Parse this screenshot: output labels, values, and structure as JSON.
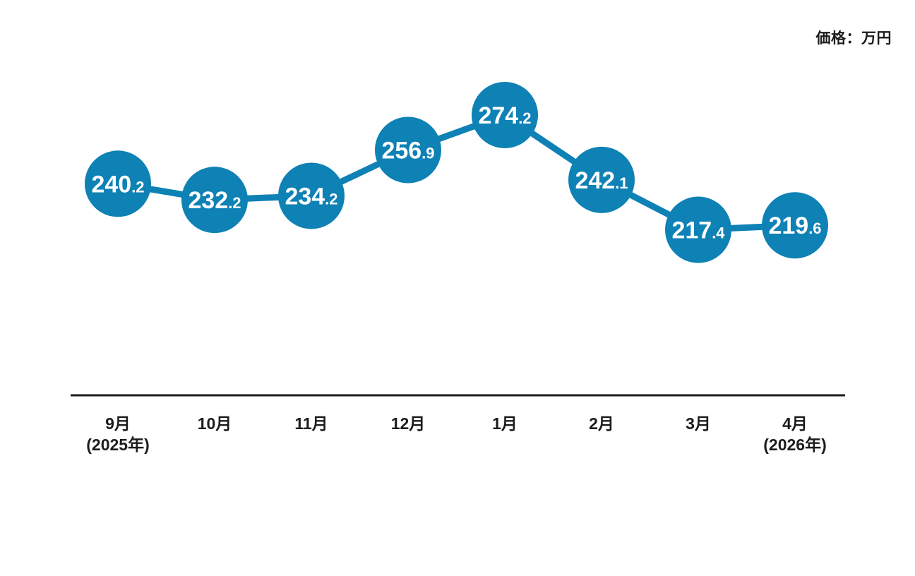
{
  "header": {
    "unit_label": "価格：万円"
  },
  "chart_data": {
    "type": "line",
    "title": "",
    "xlabel": "",
    "ylabel": "価格：万円",
    "unit": "万円",
    "categories": [
      "9月",
      "10月",
      "11月",
      "12月",
      "1月",
      "2月",
      "3月",
      "4月"
    ],
    "category_sublabels": [
      "(2025年)",
      "",
      "",
      "",
      "",
      "",
      "",
      "(2026年)"
    ],
    "series": [
      {
        "name": "価格",
        "values": [
          240.2,
          232.2,
          234.2,
          256.9,
          274.2,
          242.1,
          217.4,
          219.6
        ]
      }
    ],
    "ylim": [
      200,
      290
    ],
    "grid": false,
    "legend_position": "none",
    "colors": {
      "marker": "#0e81b5",
      "line": "#0e81b5",
      "value_text": "#ffffff",
      "axis": "#1c1c1c",
      "tick_text": "#1c1c1c"
    }
  }
}
